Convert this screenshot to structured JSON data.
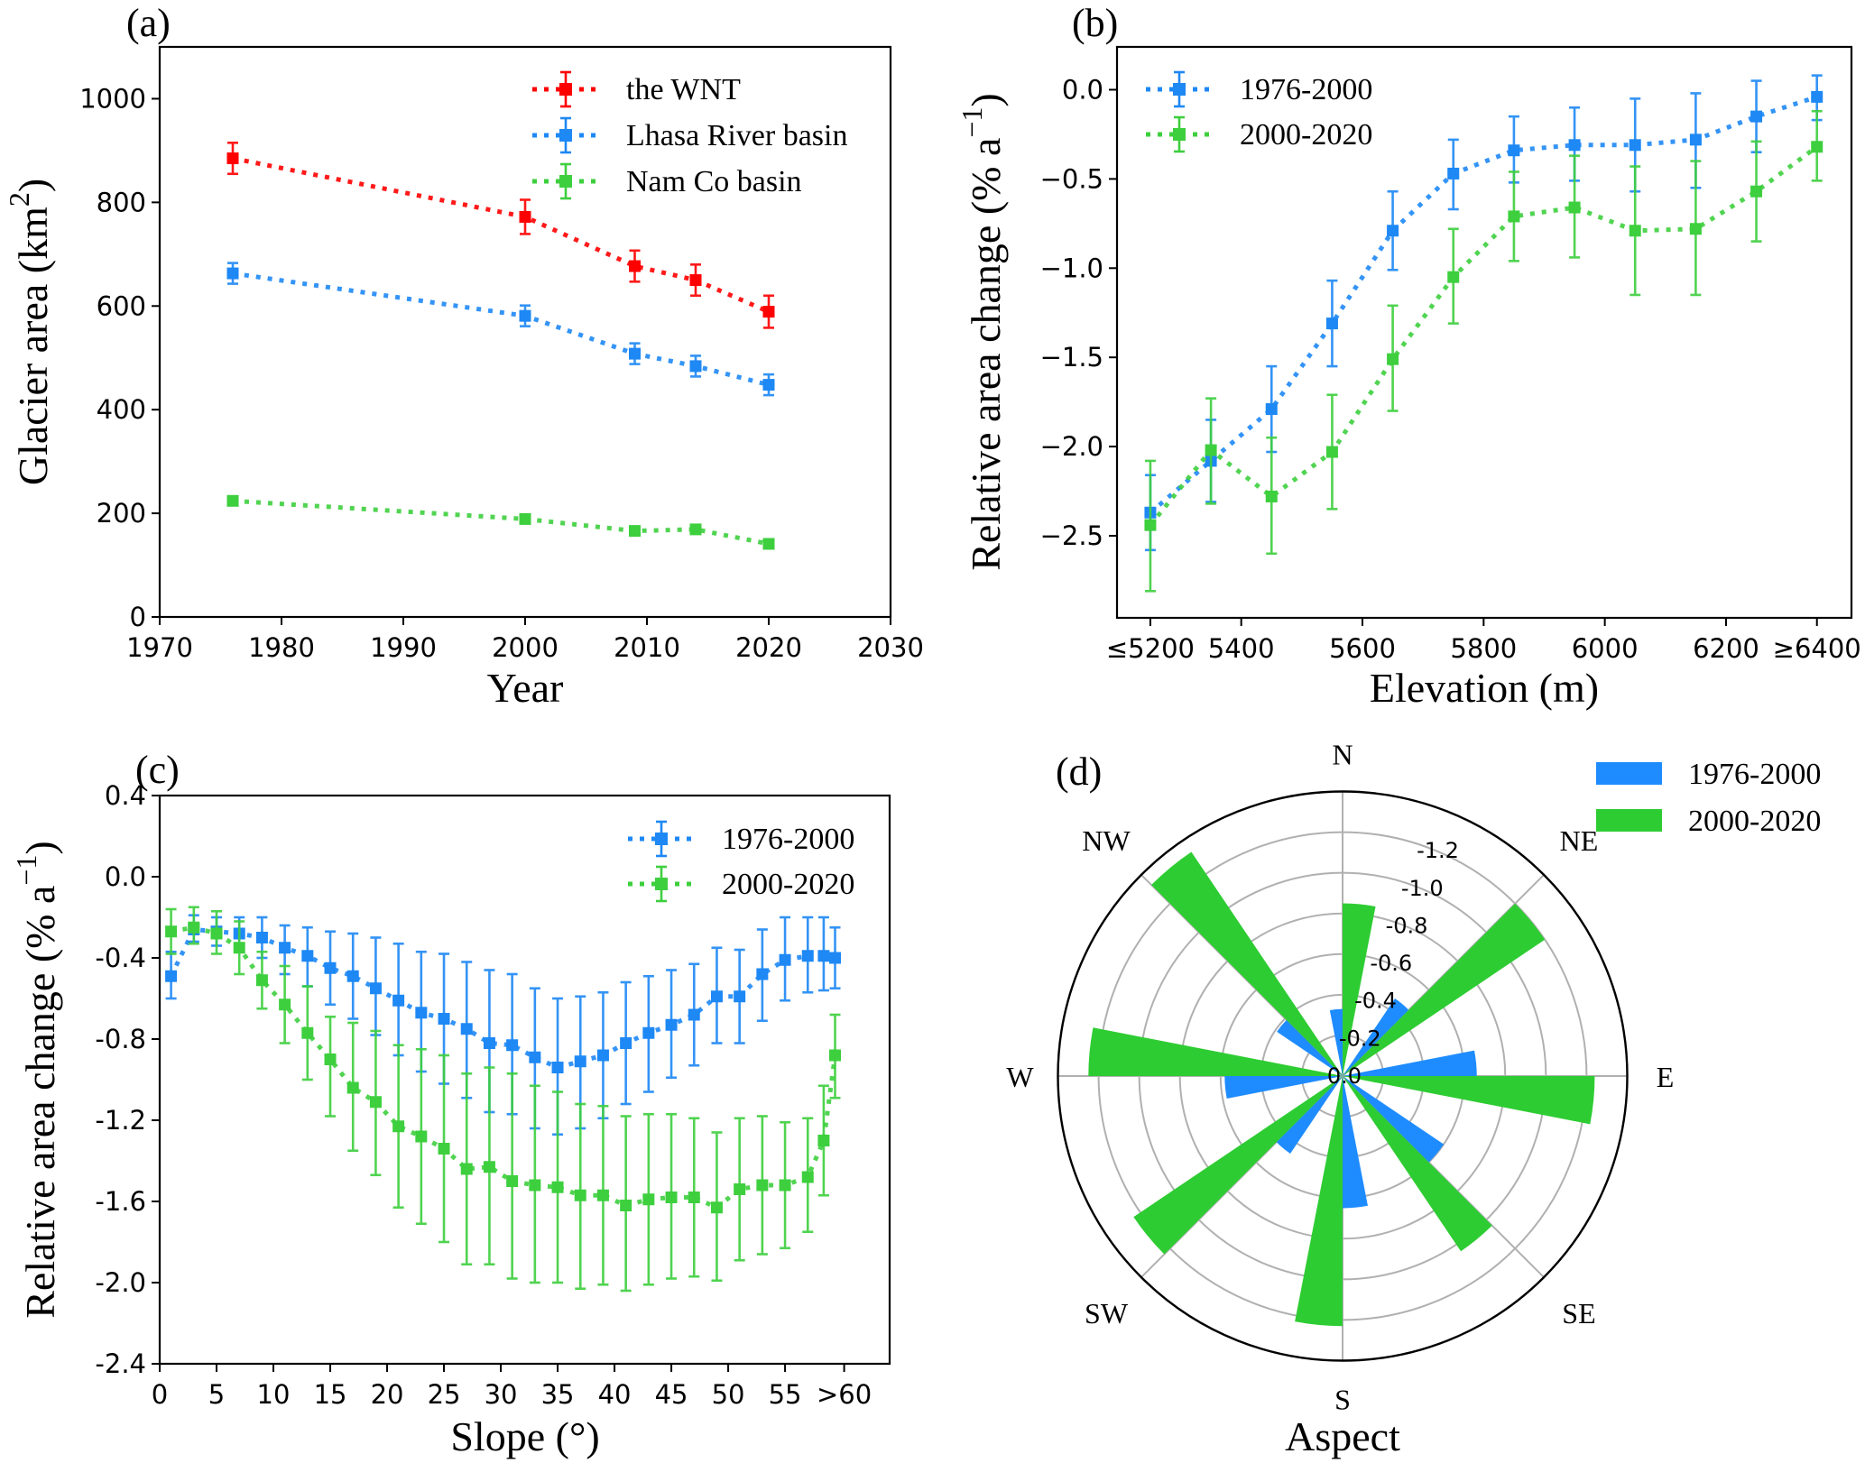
{
  "figure": {
    "panels": [
      "(a)",
      "(b)",
      "(c)",
      "(d)"
    ]
  },
  "chart_data": [
    {
      "id": "a",
      "panel_label": "(a)",
      "type": "line",
      "xlabel": "Year",
      "ylabel": "Glacier area (km²)",
      "ylabel_main": "Glacier area (km",
      "ylabel_sup": "2",
      "ylabel_end": ")",
      "xlim": [
        1970,
        2030
      ],
      "ylim": [
        0,
        1100
      ],
      "xticks": [
        1970,
        1980,
        1990,
        2000,
        2010,
        2020,
        2030
      ],
      "yticks": [
        0,
        200,
        400,
        600,
        800,
        1000
      ],
      "legend_position": "top-right",
      "series": [
        {
          "name": "the WNT",
          "color": "#ff0000",
          "x": [
            1976,
            2000,
            2009,
            2014,
            2020
          ],
          "y": [
            885,
            772,
            677,
            650,
            589
          ],
          "err": [
            30,
            33,
            30,
            30,
            31
          ]
        },
        {
          "name": "Lhasa River basin",
          "color": "#1e88f5",
          "x": [
            1976,
            2000,
            2009,
            2014,
            2020
          ],
          "y": [
            663,
            581,
            508,
            484,
            448
          ],
          "err": [
            20,
            20,
            20,
            20,
            20
          ]
        },
        {
          "name": "Nam Co basin",
          "color": "#3ecf3e",
          "x": [
            1976,
            2000,
            2009,
            2014,
            2020
          ],
          "y": [
            224,
            189,
            166,
            169,
            141
          ],
          "err": [
            4,
            4,
            4,
            4,
            4
          ]
        }
      ]
    },
    {
      "id": "b",
      "panel_label": "(b)",
      "type": "line",
      "xlabel": "Elevation (m)",
      "ylabel": "Relative area change (% a⁻¹)",
      "ylabel_main": "Relative area change (% a",
      "ylabel_sup": "−1",
      "ylabel_end": ")",
      "xlim": [
        5195,
        6407
      ],
      "ylim": [
        -2.96,
        0.24
      ],
      "xticks": [
        {
          "value": 5250,
          "label": "≤5200"
        },
        {
          "value": 5400,
          "label": "5400"
        },
        {
          "value": 5600,
          "label": "5600"
        },
        {
          "value": 5800,
          "label": "5800"
        },
        {
          "value": 6000,
          "label": "6000"
        },
        {
          "value": 6200,
          "label": "6200"
        },
        {
          "value": 6350,
          "label": "≥6400"
        }
      ],
      "yticks": [
        {
          "value": 0.0,
          "label": "0.0"
        },
        {
          "value": -0.5,
          "label": "−0.5"
        },
        {
          "value": -1.0,
          "label": "−1.0"
        },
        {
          "value": -1.5,
          "label": "−1.5"
        },
        {
          "value": -2.0,
          "label": "−2.0"
        },
        {
          "value": -2.5,
          "label": "−2.5"
        }
      ],
      "legend_position": "top-left",
      "series": [
        {
          "name": "1976-2000",
          "color": "#1e88f5",
          "x": [
            5250,
            5350,
            5450,
            5550,
            5650,
            5750,
            5850,
            5950,
            6050,
            6150,
            6250,
            6350
          ],
          "y": [
            -2.37,
            -2.08,
            -1.79,
            -1.31,
            -0.79,
            -0.47,
            -0.34,
            -0.31,
            -0.31,
            -0.28,
            -0.15,
            -0.04
          ],
          "y_low": [
            -2.58,
            -2.31,
            -2.03,
            -1.55,
            -1.01,
            -0.67,
            -0.52,
            -0.51,
            -0.57,
            -0.55,
            -0.35,
            -0.17
          ],
          "y_high": [
            -2.16,
            -1.85,
            -1.55,
            -1.07,
            -0.57,
            -0.28,
            -0.15,
            -0.1,
            -0.05,
            -0.02,
            0.05,
            0.08
          ]
        },
        {
          "name": "2000-2020",
          "color": "#3ecf3e",
          "x": [
            5250,
            5350,
            5450,
            5550,
            5650,
            5750,
            5850,
            5950,
            6050,
            6150,
            6250,
            6350
          ],
          "y": [
            -2.44,
            -2.02,
            -2.28,
            -2.03,
            -1.51,
            -1.05,
            -0.71,
            -0.66,
            -0.79,
            -0.78,
            -0.57,
            -0.32
          ],
          "y_low": [
            -2.81,
            -2.32,
            -2.6,
            -2.35,
            -1.8,
            -1.31,
            -0.96,
            -0.94,
            -1.15,
            -1.15,
            -0.85,
            -0.51
          ],
          "y_high": [
            -2.08,
            -1.73,
            -1.95,
            -1.71,
            -1.21,
            -0.78,
            -0.46,
            -0.37,
            -0.43,
            -0.4,
            -0.29,
            -0.12
          ]
        }
      ]
    },
    {
      "id": "c",
      "panel_label": "(c)",
      "type": "line",
      "xlabel": "Slope (°)",
      "ylabel": "Relative area change (% a⁻¹)",
      "ylabel_main": "Relative area change (% a",
      "ylabel_sup": "−1",
      "ylabel_end": ")",
      "xlim": [
        0,
        64.2
      ],
      "ylim": [
        -2.4,
        0.4
      ],
      "xticks": [
        {
          "value": 0,
          "label": "0"
        },
        {
          "value": 5,
          "label": "5"
        },
        {
          "value": 10,
          "label": "10"
        },
        {
          "value": 15,
          "label": "15"
        },
        {
          "value": 20,
          "label": "20"
        },
        {
          "value": 25,
          "label": "25"
        },
        {
          "value": 30,
          "label": "30"
        },
        {
          "value": 35,
          "label": "35"
        },
        {
          "value": 40,
          "label": "40"
        },
        {
          "value": 45,
          "label": "45"
        },
        {
          "value": 50,
          "label": "50"
        },
        {
          "value": 55,
          "label": "55"
        },
        {
          "value": 60.2,
          "label": ">60"
        }
      ],
      "yticks": [
        {
          "value": 0.4,
          "label": "0.4"
        },
        {
          "value": 0.0,
          "label": "0.0"
        },
        {
          "value": -0.4,
          "label": "-0.4"
        },
        {
          "value": -0.8,
          "label": "-0.8"
        },
        {
          "value": -1.2,
          "label": "-1.2"
        },
        {
          "value": -1.6,
          "label": "-1.6"
        },
        {
          "value": -2.0,
          "label": "-2.0"
        },
        {
          "value": -2.4,
          "label": "-2.4"
        }
      ],
      "legend_position": "top-right",
      "series": [
        {
          "name": "1976-2000",
          "color": "#1e88f5",
          "x": [
            1,
            3,
            5,
            7,
            9,
            11,
            13,
            15,
            17,
            19,
            21,
            23,
            25,
            27,
            29,
            31,
            33,
            35,
            37,
            39,
            41,
            43,
            45,
            47,
            49,
            51,
            53,
            55,
            57,
            58.4,
            59.4
          ],
          "y": [
            -0.49,
            -0.26,
            -0.27,
            -0.28,
            -0.3,
            -0.35,
            -0.39,
            -0.45,
            -0.49,
            -0.55,
            -0.61,
            -0.67,
            -0.7,
            -0.75,
            -0.82,
            -0.83,
            -0.89,
            -0.94,
            -0.91,
            -0.88,
            -0.82,
            -0.77,
            -0.73,
            -0.68,
            -0.59,
            -0.59,
            -0.48,
            -0.41,
            -0.39,
            -0.39,
            -0.4
          ],
          "y_low": [
            -0.6,
            -0.32,
            -0.34,
            -0.36,
            -0.4,
            -0.48,
            -0.54,
            -0.63,
            -0.7,
            -0.78,
            -0.88,
            -0.96,
            -1.02,
            -1.09,
            -1.16,
            -1.17,
            -1.24,
            -1.27,
            -1.24,
            -1.19,
            -1.12,
            -1.06,
            -0.99,
            -0.93,
            -0.82,
            -0.82,
            -0.71,
            -0.61,
            -0.57,
            -0.56,
            -0.55
          ],
          "y_high": [
            -0.37,
            -0.19,
            -0.2,
            -0.2,
            -0.2,
            -0.24,
            -0.25,
            -0.27,
            -0.28,
            -0.3,
            -0.33,
            -0.37,
            -0.38,
            -0.42,
            -0.46,
            -0.48,
            -0.55,
            -0.6,
            -0.59,
            -0.57,
            -0.52,
            -0.49,
            -0.46,
            -0.43,
            -0.35,
            -0.36,
            -0.26,
            -0.2,
            -0.2,
            -0.2,
            -0.25
          ]
        },
        {
          "name": "2000-2020",
          "color": "#3ecf3e",
          "x": [
            1,
            3,
            5,
            7,
            9,
            11,
            13,
            15,
            17,
            19,
            21,
            23,
            25,
            27,
            29,
            31,
            33,
            35,
            37,
            39,
            41,
            43,
            45,
            47,
            49,
            51,
            53,
            55,
            57,
            58.4,
            59.4
          ],
          "y": [
            -0.27,
            -0.25,
            -0.28,
            -0.35,
            -0.51,
            -0.63,
            -0.77,
            -0.9,
            -1.04,
            -1.11,
            -1.23,
            -1.28,
            -1.34,
            -1.44,
            -1.43,
            -1.5,
            -1.52,
            -1.53,
            -1.57,
            -1.57,
            -1.62,
            -1.59,
            -1.58,
            -1.58,
            -1.63,
            -1.54,
            -1.52,
            -1.52,
            -1.48,
            -1.3,
            -0.88
          ],
          "y_low": [
            -0.38,
            -0.33,
            -0.38,
            -0.48,
            -0.65,
            -0.82,
            -1.0,
            -1.18,
            -1.35,
            -1.47,
            -1.63,
            -1.71,
            -1.8,
            -1.91,
            -1.91,
            -1.98,
            -2.0,
            -2.0,
            -2.03,
            -2.01,
            -2.04,
            -2.01,
            -1.98,
            -1.97,
            -1.99,
            -1.89,
            -1.86,
            -1.83,
            -1.75,
            -1.57,
            -1.09
          ],
          "y_high": [
            -0.16,
            -0.15,
            -0.17,
            -0.22,
            -0.37,
            -0.44,
            -0.54,
            -0.69,
            -0.72,
            -0.76,
            -0.83,
            -0.85,
            -0.88,
            -0.97,
            -0.94,
            -0.97,
            -1.03,
            -1.06,
            -1.12,
            -1.13,
            -1.18,
            -1.17,
            -1.17,
            -1.19,
            -1.26,
            -1.19,
            -1.18,
            -1.21,
            -1.19,
            -1.03,
            -0.68
          ]
        }
      ]
    },
    {
      "id": "d",
      "panel_label": "(d)",
      "type": "bar",
      "subtype": "polar-rose",
      "xlabel": "Aspect",
      "directions": [
        "N",
        "NE",
        "E",
        "SE",
        "S",
        "SW",
        "W",
        "NW"
      ],
      "direction_angles_deg": [
        0,
        45,
        90,
        135,
        180,
        225,
        270,
        315
      ],
      "rlim": [
        0,
        -1.4
      ],
      "rticks": [
        {
          "value": 0.0,
          "label": "0.0"
        },
        {
          "value": -0.2,
          "label": "-0.2"
        },
        {
          "value": -0.4,
          "label": "-0.4"
        },
        {
          "value": -0.6,
          "label": "-0.6"
        },
        {
          "value": -0.8,
          "label": "-0.8"
        },
        {
          "value": -1.0,
          "label": "-1.0"
        },
        {
          "value": -1.2,
          "label": "-1.2"
        }
      ],
      "legend_position": "top-right",
      "series": [
        {
          "name": "1976-2000",
          "color": "#1e8cff",
          "values": [
            -0.33,
            -0.46,
            -0.66,
            -0.6,
            -0.65,
            -0.46,
            -0.58,
            -0.39
          ]
        },
        {
          "name": "2000-2020",
          "color": "#2ecc33",
          "values": [
            -0.85,
            -1.2,
            -1.24,
            -1.04,
            -1.23,
            -1.24,
            -1.25,
            -1.33
          ]
        }
      ]
    }
  ]
}
